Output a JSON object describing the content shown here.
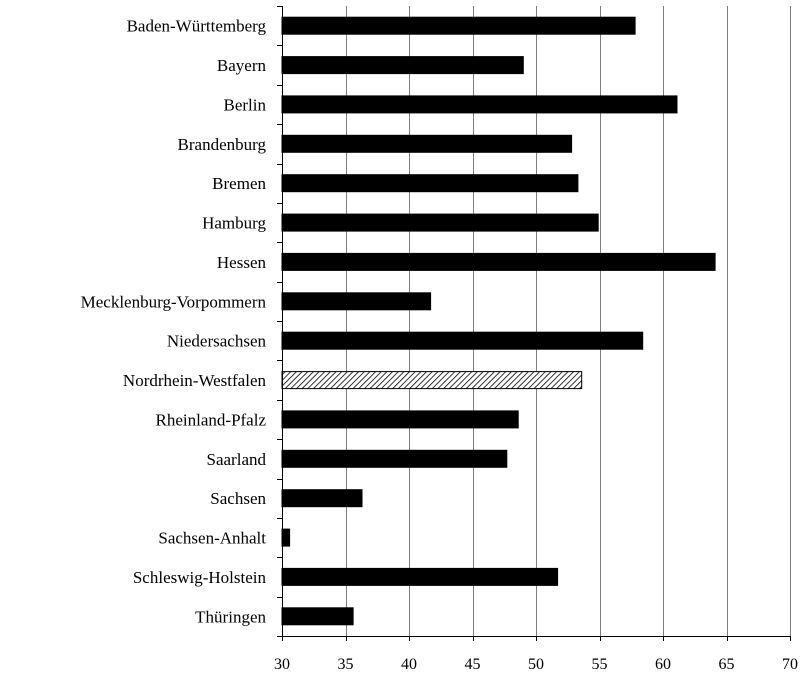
{
  "chart_data": {
    "type": "bar",
    "orientation": "horizontal",
    "categories": [
      "Baden-Württemberg",
      "Bayern",
      "Berlin",
      "Brandenburg",
      "Bremen",
      "Hamburg",
      "Hessen",
      "Mecklenburg-Vorpommern",
      "Niedersachsen",
      "Nordrhein-Westfalen",
      "Rheinland-Pfalz",
      "Saarland",
      "Sachsen",
      "Sachsen-Anhalt",
      "Schleswig-Holstein",
      "Thüringen"
    ],
    "values": [
      57.8,
      49.0,
      61.1,
      52.8,
      53.3,
      54.9,
      64.1,
      41.7,
      58.4,
      53.6,
      48.6,
      47.7,
      36.3,
      30.6,
      51.7,
      35.6
    ],
    "highlighted": [
      "Nordrhein-Westfalen"
    ],
    "xlim": [
      30,
      70
    ],
    "xticks": [
      30,
      35,
      40,
      45,
      50,
      55,
      60,
      65,
      70
    ],
    "grid": "vertical",
    "legend": "none",
    "colors": {
      "bar": "#000000",
      "highlight_stripe": "#000000",
      "highlight_background": "#ffffff",
      "grid": "#7f7f7f",
      "axis": "#000000"
    }
  }
}
